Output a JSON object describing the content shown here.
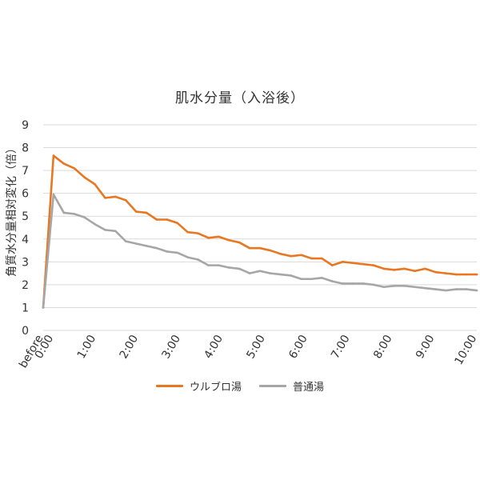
{
  "chart_data": {
    "type": "line",
    "title": "肌水分量（入浴後）",
    "xlabel": "",
    "ylabel": "角質水分量相対変化（倍）",
    "ylim": [
      0,
      9
    ],
    "yticks": [
      0,
      1,
      2,
      3,
      4,
      5,
      6,
      7,
      8,
      9
    ],
    "x_labels": [
      "before",
      "0:00",
      "1:00",
      "2:00",
      "3:00",
      "4:00",
      "5:00",
      "6:00",
      "7:00",
      "8:00",
      "9:00",
      "10:00"
    ],
    "grid": "horizontal",
    "legend_position": "bottom",
    "series": [
      {
        "name": "ウルブロ湯",
        "color": "#E87722",
        "values": [
          1,
          7.65,
          7.3,
          7.1,
          6.7,
          6.4,
          5.8,
          5.85,
          5.7,
          5.2,
          5.15,
          4.85,
          4.85,
          4.7,
          4.3,
          4.25,
          4.05,
          4.1,
          3.95,
          3.85,
          3.6,
          3.6,
          3.5,
          3.35,
          3.25,
          3.3,
          3.15,
          3.15,
          2.85,
          3.0,
          2.95,
          2.9,
          2.85,
          2.7,
          2.65,
          2.7,
          2.6,
          2.7,
          2.55,
          2.5,
          2.45,
          2.45,
          2.45
        ]
      },
      {
        "name": "普通湯",
        "color": "#A6A6A6",
        "values": [
          1,
          5.95,
          5.15,
          5.1,
          4.95,
          4.65,
          4.4,
          4.35,
          3.9,
          3.8,
          3.7,
          3.6,
          3.45,
          3.4,
          3.2,
          3.1,
          2.85,
          2.85,
          2.75,
          2.7,
          2.5,
          2.6,
          2.5,
          2.45,
          2.4,
          2.25,
          2.25,
          2.3,
          2.15,
          2.05,
          2.05,
          2.05,
          2.0,
          1.9,
          1.95,
          1.95,
          1.9,
          1.85,
          1.8,
          1.75,
          1.8,
          1.8,
          1.75
        ]
      }
    ]
  }
}
